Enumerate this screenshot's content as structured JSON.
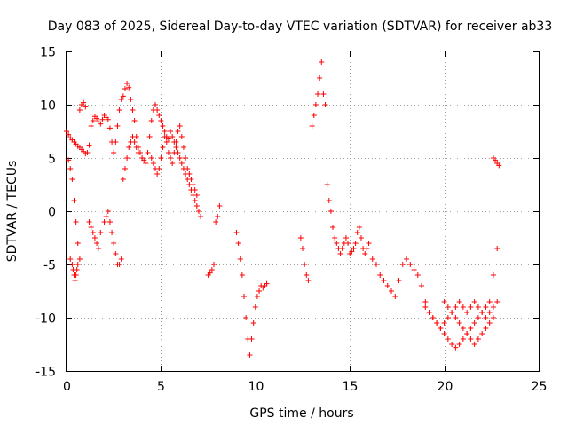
{
  "chart_data": {
    "type": "scatter",
    "title": "Day 083 of 2025, Sidereal Day-to-day VTEC variation (SDTVAR) for receiver ab33",
    "xlabel": "GPS time / hours",
    "ylabel": "SDTVAR / TECUs",
    "xlim": [
      0,
      25
    ],
    "ylim": [
      -15,
      15
    ],
    "xticks": [
      0,
      5,
      10,
      15,
      20,
      25
    ],
    "yticks": [
      -15,
      -10,
      -5,
      0,
      5,
      10,
      15
    ],
    "xtick_labels": [
      "0",
      "5",
      "10",
      "15",
      "20",
      "25"
    ],
    "ytick_labels": [
      "-15",
      "-10",
      "-5",
      "0",
      "5",
      "10",
      "15"
    ],
    "grid": true,
    "marker": "+",
    "color": "#ff0000",
    "series": [
      {
        "name": "SDTVAR",
        "x": [
          0.0,
          0.1,
          0.2,
          0.3,
          0.4,
          0.5,
          0.6,
          0.7,
          0.8,
          0.9,
          1.0,
          1.1,
          1.2,
          1.3,
          1.4,
          1.5,
          1.6,
          1.7,
          1.8,
          1.9,
          2.0,
          2.1,
          2.2,
          2.3,
          2.4,
          2.5,
          2.6,
          2.7,
          2.8,
          2.9,
          3.0,
          3.1,
          3.2,
          3.3,
          3.4,
          3.5,
          3.6,
          3.7,
          3.8,
          3.9,
          4.0,
          4.1,
          4.2,
          4.3,
          4.4,
          4.5,
          4.6,
          4.7,
          4.8,
          4.9,
          5.0,
          5.1,
          5.2,
          5.3,
          5.4,
          5.5,
          5.6,
          5.7,
          5.8,
          5.9,
          6.0,
          6.1,
          6.2,
          6.3,
          6.4,
          6.5,
          6.6,
          6.7,
          6.8,
          6.9,
          7.0,
          7.1,
          0.1,
          0.2,
          0.3,
          0.4,
          0.5,
          0.6,
          0.7,
          0.2,
          0.3,
          0.35,
          0.4,
          0.45,
          0.5,
          0.55,
          0.6,
          0.7,
          0.8,
          0.9,
          1.0,
          1.2,
          1.3,
          1.4,
          1.5,
          1.6,
          1.7,
          1.8,
          2.0,
          2.1,
          2.2,
          2.3,
          2.4,
          2.5,
          2.6,
          2.7,
          2.8,
          2.9,
          3.0,
          3.1,
          3.2,
          3.3,
          3.4,
          3.5,
          3.6,
          3.7,
          3.8,
          4.5,
          4.6,
          4.7,
          4.8,
          4.9,
          5.0,
          5.1,
          5.2,
          5.3,
          5.4,
          5.5,
          5.6,
          5.7,
          5.8,
          5.9,
          6.0,
          6.1,
          6.2,
          6.3,
          6.4,
          6.5,
          6.6,
          6.7,
          6.8,
          6.9,
          7.5,
          7.6,
          7.7,
          7.8,
          7.9,
          8.0,
          8.1,
          9.0,
          9.1,
          9.2,
          9.3,
          9.4,
          9.5,
          9.6,
          9.7,
          9.8,
          9.9,
          10.0,
          10.1,
          10.2,
          10.3,
          10.4,
          10.5,
          10.6,
          12.4,
          12.5,
          12.6,
          12.7,
          12.8,
          13.0,
          13.1,
          13.2,
          13.3,
          13.4,
          13.5,
          13.6,
          13.7,
          13.8,
          13.9,
          14.0,
          14.1,
          14.2,
          14.3,
          14.4,
          14.5,
          14.6,
          14.7,
          14.8,
          14.9,
          15.0,
          15.1,
          15.2,
          15.3,
          15.4,
          15.5,
          15.6,
          15.7,
          15.8,
          15.9,
          16.0,
          16.2,
          16.4,
          16.6,
          16.8,
          17.0,
          17.2,
          17.4,
          17.6,
          17.8,
          18.0,
          18.2,
          18.4,
          18.6,
          18.8,
          19.0,
          19.2,
          19.4,
          19.6,
          19.8,
          20.0,
          20.2,
          20.4,
          20.6,
          20.8,
          21.0,
          21.2,
          21.4,
          21.6,
          21.8,
          22.0,
          22.2,
          22.4,
          22.6,
          22.8,
          19.0,
          19.2,
          19.4,
          19.6,
          19.8,
          20.0,
          20.2,
          20.4,
          20.6,
          20.8,
          21.0,
          21.2,
          21.4,
          21.6,
          21.8,
          22.0,
          22.2,
          22.4,
          22.6,
          20.0,
          20.2,
          20.4,
          20.6,
          20.8,
          21.0,
          21.2,
          21.4,
          21.6,
          21.8,
          22.0,
          22.2,
          22.4,
          22.6,
          22.8,
          22.6,
          22.7,
          22.8,
          22.9
        ],
        "y": [
          7.5,
          7.2,
          6.9,
          6.7,
          6.5,
          6.3,
          6.1,
          6.0,
          5.8,
          5.6,
          5.4,
          5.5,
          6.2,
          8.0,
          8.5,
          8.9,
          8.7,
          8.4,
          8.2,
          8.6,
          9.0,
          8.8,
          8.6,
          7.8,
          6.5,
          5.5,
          6.5,
          8.0,
          9.5,
          10.5,
          10.8,
          11.5,
          12.0,
          11.6,
          10.5,
          9.5,
          8.5,
          7.0,
          6.0,
          5.5,
          5.0,
          4.8,
          4.5,
          5.5,
          7.0,
          8.5,
          9.5,
          10.0,
          9.5,
          9.0,
          8.5,
          8.0,
          7.5,
          7.0,
          6.8,
          7.5,
          7.0,
          6.5,
          6.0,
          5.5,
          5.0,
          4.5,
          4.0,
          3.5,
          3.0,
          2.5,
          2.0,
          1.5,
          1.0,
          0.5,
          0.0,
          -0.5,
          4.8,
          4.0,
          3.0,
          1.0,
          -1.0,
          -3.0,
          -4.5,
          -4.5,
          -5.0,
          -5.5,
          -6.0,
          -6.5,
          -6.0,
          -5.5,
          -5.0,
          9.5,
          10.0,
          10.2,
          9.8,
          -1.0,
          -1.5,
          -2.0,
          -2.5,
          -3.0,
          -3.5,
          -2.0,
          -1.0,
          -0.5,
          0.0,
          -1.0,
          -2.0,
          -3.0,
          -4.0,
          -5.0,
          -5.0,
          -4.5,
          3.0,
          4.0,
          5.0,
          6.0,
          6.5,
          7.0,
          6.5,
          6.0,
          5.5,
          5.0,
          4.5,
          4.0,
          3.5,
          4.0,
          5.0,
          6.0,
          7.0,
          6.5,
          5.5,
          5.0,
          4.5,
          5.5,
          6.5,
          7.5,
          8.0,
          7.0,
          6.0,
          5.0,
          4.0,
          3.5,
          3.0,
          2.5,
          2.0,
          1.5,
          -6.0,
          -5.8,
          -5.5,
          -5.0,
          -1.0,
          -0.5,
          0.5,
          -2.0,
          -3.0,
          -4.5,
          -6.0,
          -8.0,
          -10.0,
          -12.0,
          -13.5,
          -12.0,
          -10.5,
          -9.0,
          -8.0,
          -7.5,
          -7.0,
          -7.2,
          -7.0,
          -6.8,
          -2.5,
          -3.5,
          -5.0,
          -6.0,
          -6.5,
          8.0,
          9.0,
          10.0,
          11.0,
          12.5,
          14.0,
          11.0,
          10.0,
          2.5,
          1.0,
          0.0,
          -1.5,
          -2.5,
          -3.0,
          -3.5,
          -4.0,
          -3.5,
          -3.0,
          -2.5,
          -3.0,
          -4.0,
          -3.8,
          -3.5,
          -3.0,
          -2.0,
          -1.5,
          -2.5,
          -3.5,
          -4.0,
          -3.5,
          -3.0,
          -4.5,
          -5.0,
          -6.0,
          -6.5,
          -7.0,
          -7.5,
          -8.0,
          -6.5,
          -5.0,
          -4.5,
          -5.0,
          -5.5,
          -6.0,
          -7.0,
          -8.5,
          -9.5,
          -10.0,
          -10.5,
          -11.0,
          -11.5,
          -12.0,
          -12.5,
          -12.8,
          -12.5,
          -12.0,
          -11.5,
          -11.0,
          -10.5,
          -10.0,
          -9.5,
          -9.0,
          -8.5,
          -6.0,
          -3.5,
          -9.0,
          -9.5,
          -10.0,
          -10.5,
          -11.0,
          -10.5,
          -10.0,
          -9.5,
          -10.0,
          -10.5,
          -11.0,
          -11.5,
          -12.0,
          -12.5,
          -12.0,
          -11.5,
          -11.0,
          -10.5,
          -10.0,
          -8.5,
          -9.0,
          -9.5,
          -9.0,
          -8.5,
          -9.0,
          -9.5,
          -9.0,
          -8.5,
          -9.0,
          -9.5,
          -10.0,
          -9.5,
          -9.0,
          -8.5,
          5.0,
          4.8,
          4.5,
          4.3
        ]
      }
    ]
  }
}
